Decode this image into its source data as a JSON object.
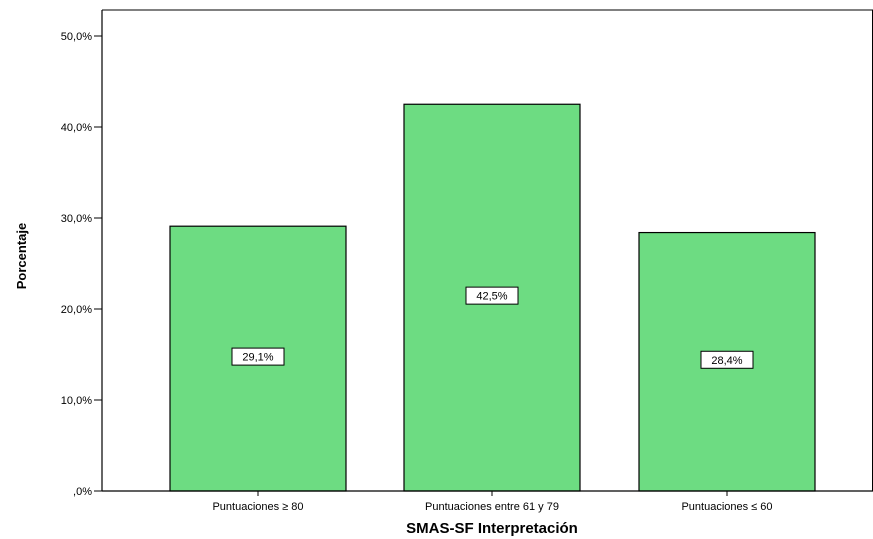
{
  "chart_data": {
    "type": "bar",
    "categories": [
      "Puntuaciones ≥ 80",
      "Puntuaciones entre 61 y 79",
      "Puntuaciones ≤ 60"
    ],
    "values": [
      29.1,
      42.5,
      28.4
    ],
    "data_labels": [
      "29,1%",
      "42,5%",
      "28,4%"
    ],
    "xlabel": "SMAS-SF Interpretación",
    "ylabel": "Porcentaje",
    "ylim": [
      0,
      50
    ],
    "yticks": [
      0,
      10,
      20,
      30,
      40,
      50
    ],
    "ytick_labels": [
      ",0%",
      "10,0%",
      "20,0%",
      "30,0%",
      "40,0%",
      "50,0%"
    ],
    "grid": false,
    "bar_color": "#6ddc82",
    "bar_edge_color": "#000000"
  }
}
